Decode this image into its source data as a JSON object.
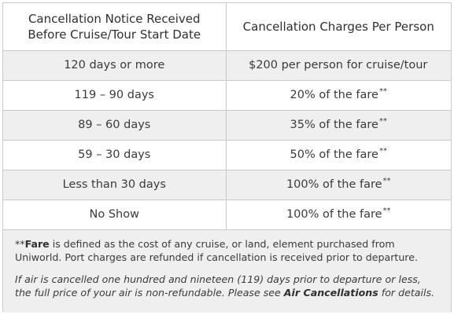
{
  "table": {
    "headers": [
      "Cancellation Notice Received Before Cruise/Tour Start Date",
      "Cancellation Charges Per Person"
    ],
    "rows": [
      {
        "notice": "120 days or more",
        "charge": "$200 per person for cruise/tour",
        "mark": ""
      },
      {
        "notice": "119 – 90 days",
        "charge": "20% of the fare",
        "mark": "**"
      },
      {
        "notice": "89 – 60 days",
        "charge": "35% of the fare",
        "mark": "**"
      },
      {
        "notice": "59 – 30 days",
        "charge": "50% of the fare",
        "mark": "**"
      },
      {
        "notice": "Less than 30 days",
        "charge": "100% of the fare",
        "mark": "**"
      },
      {
        "notice": "No Show",
        "charge": "100% of the fare",
        "mark": "**"
      }
    ]
  },
  "footnote": {
    "fare_prefix": "**",
    "fare_term": "Fare",
    "fare_text": " is defined as the cost of any cruise, or land, element purchased from Uniworld. Port charges are refunded if cancellation is received prior to departure.",
    "air_text": "If air is cancelled one hundred and nineteen (119) days prior to departure or less, the full price of your air is non-refundable. Please see ",
    "air_link": "Air Cancellations",
    "air_suffix": " for details."
  }
}
